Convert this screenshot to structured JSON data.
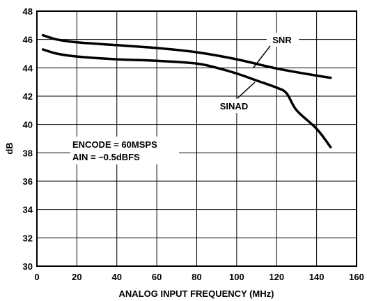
{
  "chart_data": {
    "type": "line",
    "title": "",
    "xlabel": "ANALOG INPUT FREQUENCY (MHz)",
    "ylabel": "dB",
    "xlim": [
      0,
      160
    ],
    "ylim": [
      30,
      48
    ],
    "xticks": [
      0,
      20,
      40,
      60,
      80,
      100,
      120,
      140,
      160
    ],
    "yticks": [
      30,
      32,
      34,
      36,
      38,
      40,
      42,
      44,
      46,
      48
    ],
    "grid": true,
    "series": [
      {
        "name": "SNR",
        "x": [
          3,
          10,
          20,
          40,
          60,
          80,
          100,
          120,
          140,
          147
        ],
        "y": [
          46.3,
          46.0,
          45.8,
          45.6,
          45.4,
          45.1,
          44.6,
          43.95,
          43.45,
          43.3
        ]
      },
      {
        "name": "SINAD",
        "x": [
          3,
          10,
          20,
          40,
          60,
          80,
          90,
          100,
          110,
          120,
          125,
          130,
          140,
          147
        ],
        "y": [
          45.3,
          45.0,
          44.8,
          44.6,
          44.5,
          44.3,
          44.0,
          43.6,
          43.1,
          42.6,
          42.2,
          41.0,
          39.7,
          38.4
        ]
      }
    ],
    "annotations": [
      {
        "id": "snr",
        "text": "SNR"
      },
      {
        "id": "sinad",
        "text": "SINAD"
      },
      {
        "id": "cond1",
        "text": "ENCODE = 60MSPS"
      },
      {
        "id": "cond2",
        "text": "AIN = −0.5dBFS"
      }
    ]
  }
}
